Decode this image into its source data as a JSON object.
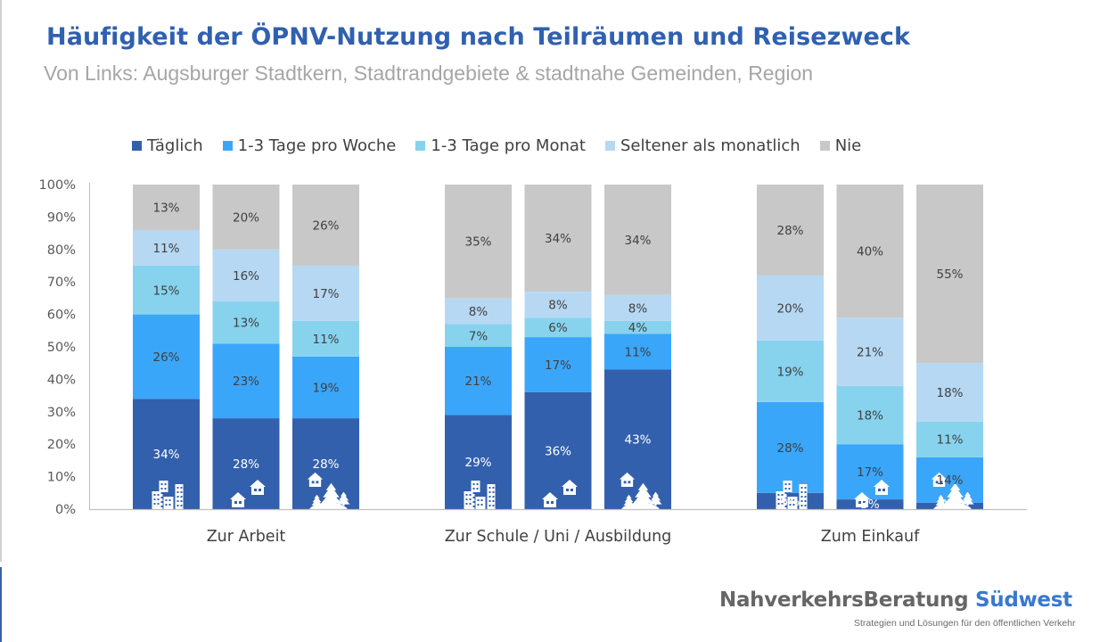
{
  "header": {
    "title": "Häufigkeit der ÖPNV-Nutzung nach Teilräumen und Reisezweck",
    "subtitle": "Von Links: Augsburger Stadtkern, Stadtrandgebiete & stadtnahe Gemeinden, Region"
  },
  "logo": {
    "name_main": "NahverkehrsBeratung",
    "name_accent": "Südwest",
    "tagline": "Strategien und Lösungen für den öffentlichen Verkehr"
  },
  "chart_data": {
    "type": "bar",
    "stacked": true,
    "normalized": true,
    "title": "Häufigkeit der ÖPNV-Nutzung nach Teilräumen und Reisezweck",
    "subtitle": "Von Links: Augsburger Stadtkern, Stadtrandgebiete & stadtnahe Gemeinden, Region",
    "xlabel": "",
    "ylabel": "",
    "ylim": [
      0,
      100
    ],
    "yticks": [
      "0%",
      "10%",
      "20%",
      "30%",
      "40%",
      "50%",
      "60%",
      "70%",
      "80%",
      "90%",
      "100%"
    ],
    "grid": false,
    "legend_position": "top",
    "groups": [
      "Zur Arbeit",
      "Zur Schule / Uni / Ausbildung",
      "Zum Einkauf"
    ],
    "subcategories": [
      "Augsburger Stadtkern",
      "Stadtrandgebiete & stadtnahe Gemeinden",
      "Region"
    ],
    "subcategory_icons": [
      "city-buildings-icon",
      "suburban-houses-icon",
      "rural-house-trees-icon"
    ],
    "series": [
      {
        "name": "Täglich",
        "color": "#3360ad",
        "label_color": "#ffffff",
        "values": [
          [
            34,
            28,
            28
          ],
          [
            29,
            36,
            43
          ],
          [
            5,
            3,
            2
          ]
        ]
      },
      {
        "name": "1-3 Tage pro Woche",
        "color": "#3aa6fa",
        "label_color": "#404040",
        "values": [
          [
            26,
            23,
            19
          ],
          [
            21,
            17,
            11
          ],
          [
            28,
            17,
            14
          ]
        ]
      },
      {
        "name": "1-3 Tage pro Monat",
        "color": "#87d3ee",
        "label_color": "#404040",
        "values": [
          [
            15,
            13,
            11
          ],
          [
            7,
            6,
            4
          ],
          [
            19,
            18,
            11
          ]
        ]
      },
      {
        "name": "Seltener als monatlich",
        "color": "#b6d8f3",
        "label_color": "#404040",
        "values": [
          [
            11,
            16,
            17
          ],
          [
            8,
            8,
            8
          ],
          [
            20,
            21,
            18
          ]
        ]
      },
      {
        "name": "Nie",
        "color": "#c8c8c8",
        "label_color": "#404040",
        "values": [
          [
            13,
            20,
            26
          ],
          [
            35,
            34,
            34
          ],
          [
            28,
            40,
            55
          ]
        ]
      }
    ]
  }
}
